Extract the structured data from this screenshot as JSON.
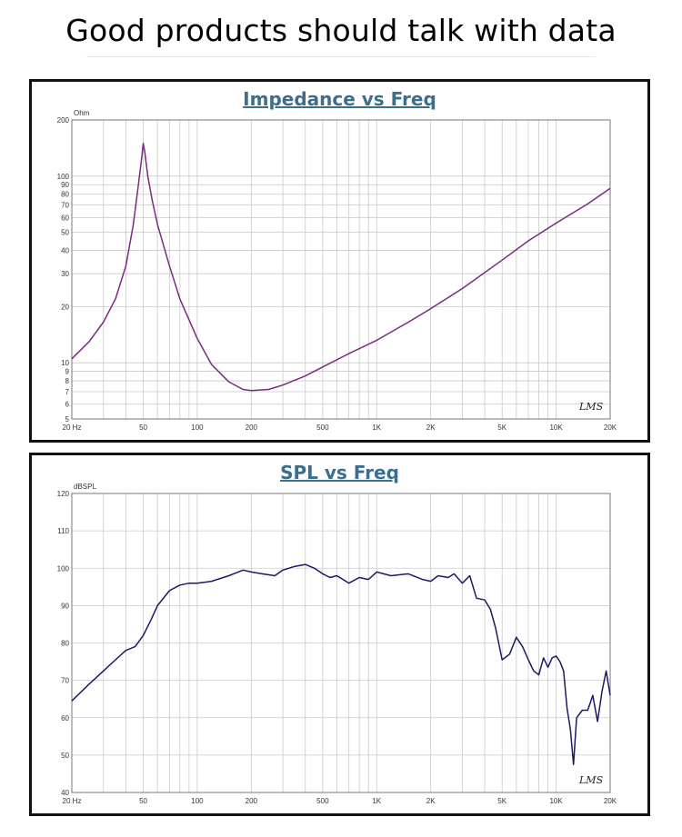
{
  "headline": "Good products should talk with data",
  "chart_data": [
    {
      "type": "line",
      "title": "Impedance vs Freq",
      "ylabel": "Ohm",
      "xlabel": "",
      "x_scale": "log",
      "y_scale": "log",
      "xlim": [
        20,
        20000
      ],
      "ylim": [
        5,
        200
      ],
      "grid": true,
      "x_ticks": [
        20,
        50,
        100,
        200,
        500,
        1000,
        2000,
        5000,
        10000,
        20000
      ],
      "x_tick_labels": [
        "20  Hz",
        "50",
        "100",
        "200",
        "500",
        "1K",
        "2K",
        "5K",
        "10K",
        "20K"
      ],
      "y_ticks": [
        5,
        6,
        7,
        8,
        9,
        10,
        20,
        30,
        40,
        50,
        60,
        70,
        80,
        90,
        100,
        200
      ],
      "y_tick_labels": [
        "5",
        "6",
        "7",
        "8",
        "9",
        "10",
        "20",
        "30",
        "40",
        "50",
        "60",
        "70",
        "80",
        "90",
        "100",
        "200"
      ],
      "watermark": "LMS",
      "color": "#7b2a7f",
      "series": [
        {
          "x": [
            20,
            25,
            30,
            35,
            40,
            44,
            47,
            49,
            50,
            51,
            53,
            56,
            60,
            70,
            80,
            100,
            120,
            150,
            180,
            200,
            250,
            300,
            400,
            500,
            700,
            1000,
            1500,
            2000,
            3000,
            5000,
            7000,
            10000,
            15000,
            20000
          ],
          "y": [
            10.5,
            13,
            16.5,
            22,
            33,
            55,
            90,
            125,
            150,
            135,
            100,
            75,
            55,
            33,
            22,
            13.5,
            9.8,
            7.9,
            7.2,
            7.1,
            7.2,
            7.6,
            8.5,
            9.5,
            11.2,
            13.2,
            16.5,
            19.5,
            25,
            35.5,
            45,
            56,
            71,
            86
          ]
        }
      ]
    },
    {
      "type": "line",
      "title": "SPL vs Freq",
      "ylabel": "dBSPL",
      "xlabel": "",
      "x_scale": "log",
      "xlim": [
        20,
        20000
      ],
      "ylim": [
        40,
        120
      ],
      "grid": true,
      "x_ticks": [
        20,
        50,
        100,
        200,
        500,
        1000,
        2000,
        5000,
        10000,
        20000
      ],
      "x_tick_labels": [
        "20  Hz",
        "50",
        "100",
        "200",
        "500",
        "1K",
        "2K",
        "5K",
        "10K",
        "20K"
      ],
      "y_ticks": [
        40,
        50,
        60,
        70,
        80,
        90,
        100,
        110,
        120
      ],
      "y_tick_labels": [
        "40",
        "50",
        "60",
        "70",
        "80",
        "90",
        "100",
        "110",
        "120"
      ],
      "watermark": "LMS",
      "color": "#1a1a66",
      "series": [
        {
          "x": [
            20,
            25,
            30,
            35,
            40,
            45,
            50,
            55,
            60,
            70,
            80,
            90,
            100,
            120,
            150,
            180,
            200,
            230,
            270,
            300,
            350,
            400,
            450,
            500,
            550,
            600,
            700,
            800,
            900,
            1000,
            1200,
            1500,
            1800,
            2000,
            2200,
            2500,
            2700,
            3000,
            3300,
            3600,
            4000,
            4300,
            4600,
            5000,
            5500,
            6000,
            6500,
            7000,
            7500,
            8000,
            8500,
            9000,
            9500,
            10000,
            10500,
            11000,
            11500,
            12000,
            12500,
            13000,
            14000,
            15000,
            16000,
            17000,
            18000,
            19000,
            20000
          ],
          "y": [
            64.5,
            69,
            72.5,
            75.5,
            78,
            79,
            82,
            86,
            90,
            94,
            95.5,
            96,
            96,
            96.5,
            98,
            99.5,
            99,
            98.5,
            98,
            99.5,
            100.5,
            101,
            100,
            98.5,
            97.5,
            98,
            96,
            97.5,
            97,
            99,
            98,
            98.5,
            97,
            96.5,
            98,
            97.5,
            98.5,
            96,
            98,
            92,
            91.5,
            89,
            84,
            75.5,
            77,
            81.5,
            79,
            75.5,
            72.5,
            71.5,
            76,
            73.5,
            76,
            76.5,
            75,
            72.5,
            62.5,
            57,
            47.5,
            60,
            62,
            62,
            66,
            59,
            67,
            72.5,
            66
          ]
        }
      ]
    }
  ]
}
